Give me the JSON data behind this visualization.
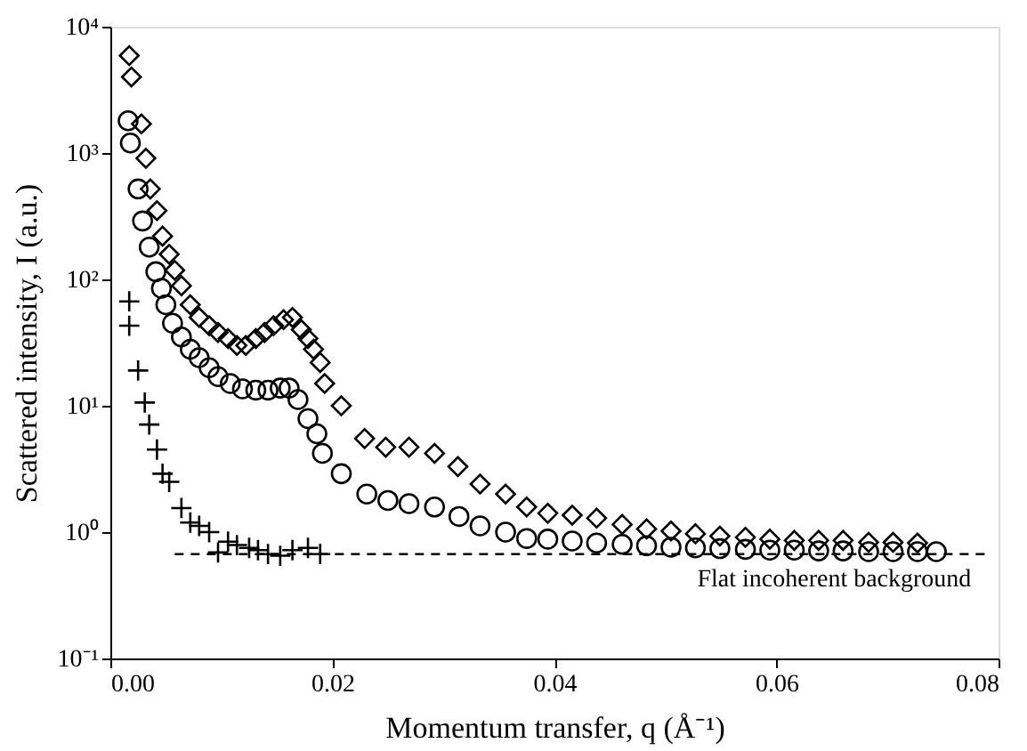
{
  "chart_data": {
    "type": "scatter",
    "xlabel": "Momentum transfer, q (Å⁻¹)",
    "ylabel": "Scattered intensity, I (a.u.)",
    "log": "y",
    "grid": false,
    "xlim": [
      0,
      0.08
    ],
    "xticks": [
      {
        "value": 0,
        "label": "0.00"
      },
      {
        "value": 0.02,
        "label": "0.02"
      },
      {
        "value": 0.04,
        "label": "0.04"
      },
      {
        "value": 0.06,
        "label": "0.06"
      },
      {
        "value": 0.08,
        "label": "0.08"
      }
    ],
    "ylim": [
      0.1,
      10000
    ],
    "yticks": [
      {
        "value": 0.1,
        "label": "10⁻¹"
      },
      {
        "value": 1,
        "label": "10⁰"
      },
      {
        "value": 10,
        "label": "10¹"
      },
      {
        "value": 100,
        "label": "10²"
      },
      {
        "value": 1000,
        "label": "10³"
      },
      {
        "value": 10000,
        "label": "10⁴"
      }
    ],
    "series": [
      {
        "marker": "diamond",
        "color": "#000000",
        "x": [
          0.0017,
          0.0019,
          0.0028,
          0.0032,
          0.0036,
          0.0042,
          0.0047,
          0.0053,
          0.0058,
          0.0064,
          0.0072,
          0.008,
          0.0089,
          0.0097,
          0.0106,
          0.0114,
          0.0122,
          0.0131,
          0.0139,
          0.0147,
          0.0156,
          0.0164,
          0.0172,
          0.0178,
          0.0183,
          0.0189,
          0.0193,
          0.0208,
          0.0229,
          0.0248,
          0.0269,
          0.0292,
          0.0313,
          0.0333,
          0.0356,
          0.0375,
          0.0394,
          0.0416,
          0.0438,
          0.0461,
          0.0483,
          0.0505,
          0.0527,
          0.0549,
          0.0572,
          0.0594,
          0.0616,
          0.0638,
          0.066,
          0.0683,
          0.0705,
          0.0727
        ],
        "values": [
          5900,
          4000,
          1700,
          910,
          520,
          350,
          220,
          158,
          118,
          89,
          63,
          50,
          43,
          38,
          34,
          30,
          30,
          34,
          38,
          43,
          48,
          50,
          40,
          34,
          28,
          22,
          15,
          10,
          5.5,
          4.7,
          4.7,
          4.2,
          3.3,
          2.4,
          2.0,
          1.58,
          1.41,
          1.36,
          1.29,
          1.15,
          1.06,
          1.02,
          0.97,
          0.93,
          0.91,
          0.88,
          0.86,
          0.86,
          0.86,
          0.83,
          0.83,
          0.82
        ]
      },
      {
        "marker": "circle",
        "color": "#000000",
        "x": [
          0.0016,
          0.0018,
          0.0025,
          0.0029,
          0.0035,
          0.0041,
          0.0046,
          0.005,
          0.0056,
          0.0064,
          0.0072,
          0.008,
          0.0089,
          0.0097,
          0.0108,
          0.0119,
          0.0131,
          0.0142,
          0.0153,
          0.0161,
          0.0169,
          0.0178,
          0.0186,
          0.0191,
          0.0208,
          0.0231,
          0.025,
          0.0269,
          0.0292,
          0.0314,
          0.0333,
          0.0356,
          0.0375,
          0.0394,
          0.0416,
          0.0438,
          0.0461,
          0.0483,
          0.0505,
          0.0527,
          0.0549,
          0.0572,
          0.0594,
          0.0616,
          0.0638,
          0.066,
          0.0683,
          0.0705,
          0.0727,
          0.0744
        ],
        "values": [
          1800,
          1200,
          520,
          290,
          180,
          115,
          85,
          63,
          45,
          35,
          28,
          24,
          20,
          17,
          15,
          13.6,
          13.3,
          13.3,
          13.8,
          13.8,
          11.2,
          7.9,
          6.0,
          4.2,
          2.9,
          2.0,
          1.78,
          1.68,
          1.58,
          1.33,
          1.12,
          1.0,
          0.89,
          0.88,
          0.85,
          0.82,
          0.8,
          0.78,
          0.76,
          0.75,
          0.74,
          0.73,
          0.72,
          0.72,
          0.71,
          0.71,
          0.7,
          0.7,
          0.7,
          0.7
        ]
      },
      {
        "marker": "cross",
        "color": "#000000",
        "x": [
          0.0017,
          0.0017,
          0.0025,
          0.0031,
          0.0035,
          0.0042,
          0.0047,
          0.0053,
          0.0064,
          0.0072,
          0.008,
          0.0089,
          0.0097,
          0.0106,
          0.0114,
          0.0125,
          0.0133,
          0.0142,
          0.0153,
          0.0164,
          0.0178,
          0.0189
        ],
        "values": [
          67,
          43,
          19,
          10.6,
          7.1,
          4.5,
          2.9,
          2.5,
          1.55,
          1.19,
          1.12,
          1.0,
          0.69,
          0.84,
          0.79,
          0.75,
          0.72,
          0.67,
          0.65,
          0.72,
          0.75,
          0.67
        ]
      },
      {
        "type": "line",
        "line_style": "dashed",
        "marker": "none",
        "color": "#000000",
        "x": [
          0.0058,
          0.079
        ],
        "values": [
          0.67,
          0.67
        ]
      }
    ],
    "annotations": [
      {
        "text": "Flat incoherent background",
        "x": 0.0652,
        "y": 0.67
      }
    ]
  }
}
